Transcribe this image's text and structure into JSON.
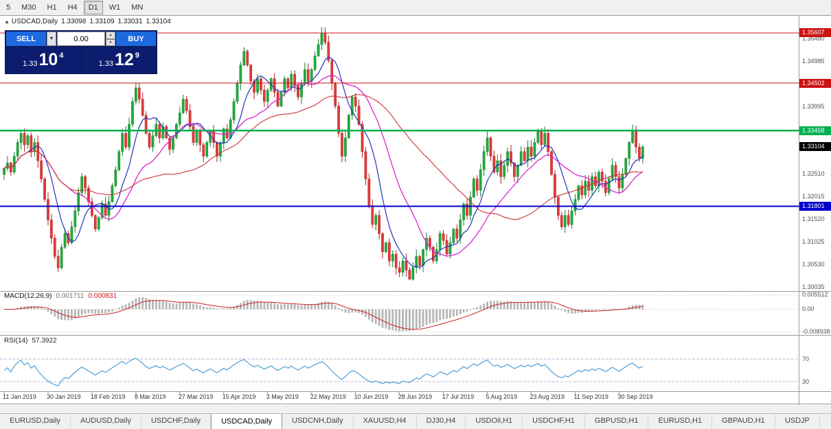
{
  "toolbar": {
    "timeframes": [
      {
        "label": "5",
        "active": false
      },
      {
        "label": "M30",
        "active": false
      },
      {
        "label": "H1",
        "active": false
      },
      {
        "label": "H4",
        "active": false
      },
      {
        "label": "D1",
        "active": true
      },
      {
        "label": "W1",
        "active": false
      },
      {
        "label": "MN",
        "active": false
      }
    ]
  },
  "header": {
    "collapse_arrow": "▲",
    "symbol": "USDCAD,Daily",
    "open": "1.33098",
    "high": "1.33109",
    "low": "1.33031",
    "close": "1.33104"
  },
  "trade_panel": {
    "sell_label": "SELL",
    "buy_label": "BUY",
    "lot_value": "0.00",
    "dropdown_glyph": "▼",
    "step_up_glyph": "▲",
    "step_down_glyph": "▼",
    "bid_small": "1.33",
    "bid_big": "10",
    "bid_sup": "4",
    "ask_small": "1.33",
    "ask_big": "12",
    "ask_sup": "9"
  },
  "chart_data": {
    "type": "candlestick",
    "title": "USDCAD,Daily",
    "x_labels": [
      "11 Jan 2019",
      "30 Jan 2019",
      "18 Feb 2019",
      "8 Mar 2019",
      "27 Mar 2019",
      "15 Apr 2019",
      "3 May 2019",
      "22 May 2019",
      "10 Jun 2019",
      "28 Jun 2019",
      "17 Jul 2019",
      "5 Aug 2019",
      "23 Aug 2019",
      "11 Sep 2019",
      "30 Sep 2019"
    ],
    "label_step": 13,
    "first_open": 1.325,
    "closes": [
      1.3263,
      1.3275,
      1.3255,
      1.329,
      1.332,
      1.334,
      1.3315,
      1.3335,
      1.33,
      1.332,
      1.328,
      1.324,
      1.3195,
      1.315,
      1.311,
      1.307,
      1.3045,
      1.309,
      1.312,
      1.31,
      1.3135,
      1.317,
      1.321,
      1.3245,
      1.322,
      1.319,
      1.316,
      1.313,
      1.3155,
      1.3185,
      1.316,
      1.319,
      1.3225,
      1.326,
      1.33,
      1.334,
      1.331,
      1.336,
      1.341,
      1.344,
      1.3415,
      1.338,
      1.334,
      1.331,
      1.3335,
      1.336,
      1.333,
      1.3355,
      1.333,
      1.3305,
      1.333,
      1.336,
      1.3385,
      1.3415,
      1.339,
      1.3355,
      1.332,
      1.3345,
      1.3315,
      1.329,
      1.332,
      1.3345,
      1.332,
      1.329,
      1.332,
      1.335,
      1.333,
      1.337,
      1.341,
      1.345,
      1.349,
      1.352,
      1.349,
      1.3455,
      1.343,
      1.346,
      1.3435,
      1.341,
      1.3435,
      1.346,
      1.343,
      1.34,
      1.343,
      1.346,
      1.344,
      1.347,
      1.3445,
      1.342,
      1.345,
      1.348,
      1.3455,
      1.348,
      1.351,
      1.3535,
      1.356,
      1.354,
      1.35,
      1.345,
      1.34,
      1.334,
      1.329,
      1.333,
      1.338,
      1.342,
      1.34,
      1.336,
      1.33,
      1.324,
      1.318,
      1.314,
      1.316,
      1.312,
      1.308,
      1.31,
      1.306,
      1.3075,
      1.3045,
      1.3035,
      1.306,
      1.304,
      1.302,
      1.3045,
      1.307,
      1.305,
      1.3085,
      1.311,
      1.309,
      1.306,
      1.3085,
      1.312,
      1.3105,
      1.3075,
      1.31,
      1.313,
      1.311,
      1.315,
      1.3185,
      1.316,
      1.32,
      1.324,
      1.3215,
      1.326,
      1.33,
      1.333,
      1.329,
      1.3255,
      1.328,
      1.3245,
      1.327,
      1.33,
      1.3275,
      1.3245,
      1.327,
      1.33,
      1.328,
      1.331,
      1.329,
      1.332,
      1.3345,
      1.3315,
      1.334,
      1.33,
      1.325,
      1.32,
      1.316,
      1.3135,
      1.316,
      1.314,
      1.317,
      1.3195,
      1.3225,
      1.3205,
      1.3235,
      1.3215,
      1.3245,
      1.3225,
      1.3255,
      1.3235,
      1.321,
      1.324,
      1.327,
      1.3245,
      1.322,
      1.325,
      1.3285,
      1.332,
      1.3345,
      1.331,
      1.3285,
      1.33104
    ],
    "price_range": {
      "min": 1.3,
      "max": 1.358
    },
    "hlines": [
      {
        "price": 1.35607,
        "label": "1.35607",
        "color": "#cc1111",
        "width": 1
      },
      {
        "price": 1.34502,
        "label": "1.34502",
        "color": "#cc1111",
        "width": 1
      },
      {
        "price": 1.33458,
        "label": "1.33458",
        "color": "#00b050",
        "width": 2.5
      },
      {
        "price": 1.31801,
        "label": "1.31801",
        "color": "#0000cc",
        "width": 2
      }
    ],
    "current_price": {
      "value": 1.33104,
      "label": "1.33104",
      "color": "#000000"
    },
    "price_ticks": [
      "1.35480",
      "1.34985",
      "1.33995",
      "1.32510",
      "1.32015",
      "1.31520",
      "1.31025",
      "1.30530",
      "1.30035"
    ],
    "moving_averages": [
      {
        "period": 8,
        "color": "#2233bb",
        "width": 1.2
      },
      {
        "period": 20,
        "color": "#dd22cc",
        "width": 1.3
      },
      {
        "period": 45,
        "color": "#cc3333",
        "width": 1.1
      }
    ],
    "candle_colors": {
      "up_fill": "#1fae3c",
      "up_stroke": "#128026",
      "down_fill": "#e23b3b",
      "down_stroke": "#b02020"
    }
  },
  "macd": {
    "name": "MACD(12,26,9)",
    "value_main": "0.001711",
    "value_signal": "0.000831",
    "fast": 12,
    "slow": 26,
    "signal": 9,
    "axis": [
      "0.005512",
      "0.00",
      "-0.008938"
    ],
    "hist_color": "#b5b5b5",
    "signal_color": "#cc2222"
  },
  "rsi": {
    "name": "RSI(14)",
    "value": "57.3922",
    "period": 14,
    "levels": [
      "70",
      "30"
    ],
    "line_color": "#4d9fd6"
  },
  "tabs": [
    {
      "label": "EURUSD,Daily",
      "active": false
    },
    {
      "label": "AUDUSD,Daily",
      "active": false
    },
    {
      "label": "USDCHF,Daily",
      "active": false
    },
    {
      "label": "USDCAD,Daily",
      "active": true
    },
    {
      "label": "USDCNH,Daily",
      "active": false
    },
    {
      "label": "XAUUSD,H4",
      "active": false
    },
    {
      "label": "DJ30,H4",
      "active": false
    },
    {
      "label": "USDOil,H1",
      "active": false
    },
    {
      "label": "USDCHF,H1",
      "active": false
    },
    {
      "label": "GBPUSD,H1",
      "active": false
    },
    {
      "label": "EURUSD,H1",
      "active": false
    },
    {
      "label": "GBPAUD,H1",
      "active": false
    },
    {
      "label": "USDJP",
      "active": false
    }
  ]
}
